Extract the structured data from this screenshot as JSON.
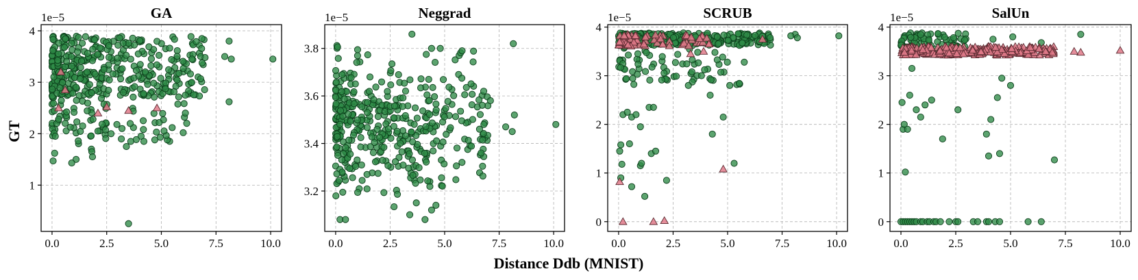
{
  "figure": {
    "xlabel": "Distance Ddb (MNIST)",
    "ylabel": "GT"
  },
  "colors": {
    "retain": "#2e8b46",
    "forget": "#e07a8a",
    "grid": "#b0b0b0"
  },
  "chart_data": [
    {
      "type": "scatter",
      "title": "GA",
      "offset_label": "1e−5",
      "xlim": [
        -0.5,
        10.5
      ],
      "ylim": [
        0.1,
        4.12
      ],
      "xticks": [
        0,
        2.5,
        5,
        7.5,
        10
      ],
      "xtick_labels": [
        "0.0",
        "2.5",
        "5.0",
        "7.5",
        "10.0"
      ],
      "yticks": [
        1,
        2,
        3,
        4
      ],
      "ytick_labels": [
        "1",
        "2",
        "3",
        "4"
      ],
      "clusters": [
        {
          "series": "retain",
          "x": [
            0,
            7
          ],
          "y": [
            2.7,
            3.9
          ],
          "n": 340,
          "skew": 2.0,
          "seed": 11
        },
        {
          "series": "retain",
          "x": [
            0,
            6.5
          ],
          "y": [
            1.8,
            3.2
          ],
          "n": 110,
          "skew": 1.6,
          "seed": 12
        }
      ],
      "series": [
        {
          "name": "retain",
          "marker": "circle",
          "points": [
            [
              0.05,
              1.47
            ],
            [
              0.12,
              1.62
            ],
            [
              0.15,
              1.95
            ],
            [
              1.1,
              1.5
            ],
            [
              0.9,
              1.43
            ],
            [
              1.8,
              1.7
            ],
            [
              1.82,
              1.65
            ],
            [
              1.85,
              1.55
            ],
            [
              3.5,
              0.25
            ],
            [
              3.6,
              1.85
            ],
            [
              4.2,
              1.85
            ],
            [
              4.7,
              1.88
            ],
            [
              4.95,
              1.93
            ],
            [
              6.0,
              2.02
            ],
            [
              6.1,
              2.4
            ],
            [
              8.1,
              2.62
            ],
            [
              10.1,
              3.45
            ],
            [
              8.2,
              3.45
            ],
            [
              7.9,
              3.5
            ],
            [
              8.1,
              3.8
            ],
            [
              6.8,
              3.5
            ],
            [
              6.4,
              3.45
            ],
            [
              7.0,
              3.48
            ],
            [
              2.1,
              2.05
            ],
            [
              2.7,
              2.0
            ],
            [
              3.2,
              2.1
            ],
            [
              3.4,
              1.75
            ],
            [
              1.4,
              2.15
            ],
            [
              0.6,
              2.2
            ],
            [
              0.3,
              2.28
            ]
          ]
        },
        {
          "name": "forget",
          "marker": "triangle",
          "points": [
            [
              0.3,
              2.5
            ],
            [
              2.1,
              2.4
            ],
            [
              2.5,
              2.52
            ],
            [
              3.5,
              2.45
            ],
            [
              4.8,
              2.5
            ],
            [
              0.4,
              3.2
            ],
            [
              0.6,
              2.85
            ]
          ]
        }
      ]
    },
    {
      "type": "scatter",
      "title": "Neggrad",
      "offset_label": "1e−5",
      "xlim": [
        -0.5,
        10.5
      ],
      "ylim": [
        3.03,
        3.9
      ],
      "xticks": [
        0,
        2.5,
        5,
        7.5,
        10
      ],
      "xtick_labels": [
        "0.0",
        "2.5",
        "5.0",
        "7.5",
        "10.0"
      ],
      "yticks": [
        3.2,
        3.4,
        3.6,
        3.8
      ],
      "ytick_labels": [
        "3.2",
        "3.4",
        "3.6",
        "3.8"
      ],
      "clusters": [
        {
          "series": "retain",
          "x": [
            0,
            7
          ],
          "y": [
            3.08,
            3.86
          ],
          "n": 420,
          "skew": 1.8,
          "center": 3.48,
          "seed": 21
        }
      ],
      "series": [
        {
          "name": "retain",
          "marker": "circle",
          "points": [
            [
              10.1,
              3.48
            ],
            [
              8.1,
              3.45
            ],
            [
              8.2,
              3.52
            ],
            [
              8.15,
              3.82
            ],
            [
              7.8,
              3.47
            ],
            [
              7.1,
              3.58
            ],
            [
              6.8,
              3.48
            ],
            [
              6.6,
              3.46
            ],
            [
              5.8,
              3.79
            ],
            [
              4.8,
              3.8
            ],
            [
              4.4,
              3.8
            ],
            [
              3.5,
              3.86
            ],
            [
              4.4,
              3.12
            ],
            [
              4.6,
              3.14
            ],
            [
              4.1,
              3.08
            ],
            [
              3.7,
              3.15
            ],
            [
              0.2,
              3.08
            ],
            [
              0.45,
              3.08
            ],
            [
              3.4,
              3.1
            ],
            [
              0.1,
              3.35
            ]
          ]
        },
        {
          "name": "forget",
          "marker": "triangle",
          "points": []
        }
      ]
    },
    {
      "type": "scatter",
      "title": "SCRUB",
      "offset_label": "1e−5",
      "xlim": [
        -0.5,
        10.5
      ],
      "ylim": [
        -0.2,
        4.05
      ],
      "xticks": [
        0,
        2.5,
        5,
        7.5,
        10
      ],
      "xtick_labels": [
        "0.0",
        "2.5",
        "5.0",
        "7.5",
        "10.0"
      ],
      "yticks": [
        0,
        1,
        2,
        3,
        4
      ],
      "ytick_labels": [
        "0",
        "1",
        "2",
        "3",
        "4"
      ],
      "clusters": [
        {
          "series": "retain",
          "x": [
            0,
            7
          ],
          "y": [
            3.62,
            3.88
          ],
          "n": 260,
          "skew": 1.5,
          "seed": 31
        },
        {
          "series": "retain",
          "x": [
            0,
            6
          ],
          "y": [
            2.8,
            3.6
          ],
          "n": 70,
          "skew": 1.6,
          "seed": 32
        },
        {
          "series": "forget",
          "x": [
            0,
            4.5
          ],
          "y": [
            3.6,
            3.85
          ],
          "n": 70,
          "skew": 1.4,
          "seed": 33
        }
      ],
      "series": [
        {
          "name": "retain",
          "marker": "circle",
          "points": [
            [
              10.1,
              3.82
            ],
            [
              8.1,
              3.85
            ],
            [
              8.2,
              3.78
            ],
            [
              7.9,
              3.82
            ],
            [
              0.05,
              1.45
            ],
            [
              0.1,
              1.58
            ],
            [
              0.15,
              1.18
            ],
            [
              0.1,
              0.9
            ],
            [
              0.2,
              2.2
            ],
            [
              0.4,
              2.25
            ],
            [
              0.6,
              2.15
            ],
            [
              0.5,
              1.6
            ],
            [
              0.8,
              2.2
            ],
            [
              1.0,
              1.95
            ],
            [
              1.0,
              1.15
            ],
            [
              1.05,
              1.2
            ],
            [
              1.2,
              0.52
            ],
            [
              0.6,
              0.72
            ],
            [
              1.4,
              2.35
            ],
            [
              1.6,
              2.35
            ],
            [
              1.5,
              1.4
            ],
            [
              1.7,
              1.45
            ],
            [
              2.2,
              0.85
            ],
            [
              4.3,
              1.8
            ],
            [
              4.8,
              2.15
            ],
            [
              5.3,
              1.2
            ],
            [
              4.2,
              2.6
            ],
            [
              5.1,
              2.8
            ],
            [
              3.2,
              2.8
            ],
            [
              3.8,
              3.0
            ]
          ]
        },
        {
          "name": "forget",
          "marker": "triangle",
          "points": [
            [
              0.05,
              0.82
            ],
            [
              0.2,
              0.0
            ],
            [
              1.6,
              0.0
            ],
            [
              2.1,
              0.02
            ],
            [
              4.8,
              1.08
            ],
            [
              3.9,
              3.5
            ],
            [
              3.3,
              3.45
            ],
            [
              6.6,
              3.75
            ]
          ]
        }
      ]
    },
    {
      "type": "scatter",
      "title": "SalUn",
      "offset_label": "1e−5",
      "xlim": [
        -0.5,
        10.5
      ],
      "ylim": [
        -0.2,
        4.05
      ],
      "xticks": [
        0,
        2.5,
        5,
        7.5,
        10
      ],
      "xtick_labels": [
        "0.0",
        "2.5",
        "5.0",
        "7.5",
        "10.0"
      ],
      "yticks": [
        0,
        1,
        2,
        3,
        4
      ],
      "ytick_labels": [
        "0",
        "1",
        "2",
        "3",
        "4"
      ],
      "clusters": [
        {
          "series": "retain",
          "x": [
            0,
            3
          ],
          "y": [
            3.55,
            3.88
          ],
          "n": 70,
          "skew": 1.4,
          "seed": 41
        },
        {
          "series": "forget",
          "x": [
            0,
            7
          ],
          "y": [
            3.42,
            3.6
          ],
          "n": 260,
          "skew": 1.3,
          "seed": 42
        }
      ],
      "series": [
        {
          "name": "retain",
          "marker": "circle",
          "points": [
            [
              0.0,
              0.0
            ],
            [
              0.1,
              0.0
            ],
            [
              0.2,
              0.0
            ],
            [
              0.3,
              0.0
            ],
            [
              0.4,
              0.0
            ],
            [
              0.5,
              0.0
            ],
            [
              0.6,
              0.0
            ],
            [
              0.7,
              0.0
            ],
            [
              0.9,
              0.0
            ],
            [
              1.0,
              0.0
            ],
            [
              1.2,
              0.0
            ],
            [
              1.3,
              0.0
            ],
            [
              1.5,
              0.0
            ],
            [
              1.6,
              0.0
            ],
            [
              1.8,
              0.0
            ],
            [
              2.2,
              0.0
            ],
            [
              2.5,
              0.0
            ],
            [
              2.6,
              0.0
            ],
            [
              3.3,
              0.0
            ],
            [
              3.5,
              0.0
            ],
            [
              3.9,
              0.0
            ],
            [
              4.0,
              0.0
            ],
            [
              4.3,
              0.0
            ],
            [
              4.5,
              0.0
            ],
            [
              5.8,
              0.0
            ],
            [
              6.4,
              0.0
            ],
            [
              0.2,
              1.02
            ],
            [
              0.05,
              2.45
            ],
            [
              0.1,
              1.9
            ],
            [
              0.15,
              2.0
            ],
            [
              0.3,
              1.9
            ],
            [
              0.4,
              2.6
            ],
            [
              0.5,
              3.15
            ],
            [
              0.7,
              2.3
            ],
            [
              0.9,
              2.15
            ],
            [
              1.1,
              2.4
            ],
            [
              1.4,
              2.5
            ],
            [
              1.9,
              1.7
            ],
            [
              2.6,
              2.3
            ],
            [
              3.9,
              1.8
            ],
            [
              4.0,
              1.35
            ],
            [
              4.5,
              1.4
            ],
            [
              4.1,
              2.1
            ],
            [
              4.4,
              2.55
            ],
            [
              4.6,
              2.95
            ],
            [
              5.0,
              2.8
            ],
            [
              7.0,
              1.27
            ],
            [
              4.2,
              3.75
            ],
            [
              6.4,
              3.68
            ],
            [
              8.2,
              3.85
            ],
            [
              5.1,
              3.8
            ]
          ]
        },
        {
          "name": "forget",
          "marker": "triangle",
          "points": [
            [
              10.0,
              3.52
            ],
            [
              8.2,
              3.48
            ],
            [
              7.9,
              3.5
            ],
            [
              6.9,
              3.48
            ],
            [
              6.6,
              3.5
            ],
            [
              6.3,
              3.55
            ],
            [
              5.9,
              3.58
            ]
          ]
        }
      ]
    }
  ]
}
